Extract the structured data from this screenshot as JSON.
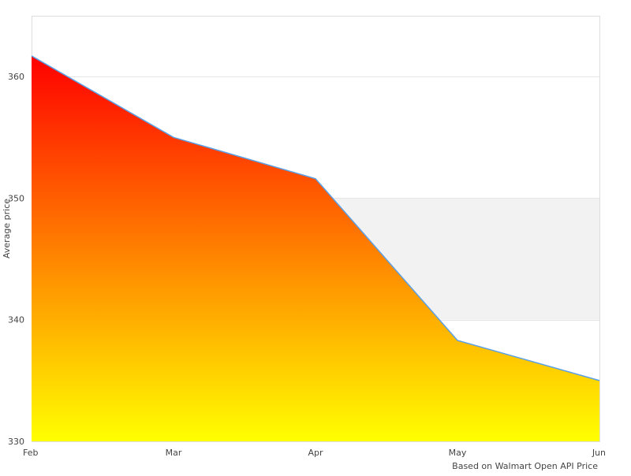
{
  "chart_data": {
    "type": "area",
    "title": "",
    "xlabel": "Based on Walmart Open API Price",
    "ylabel": "Average price",
    "categories": [
      "Feb",
      "Mar",
      "Apr",
      "May",
      "Jun"
    ],
    "values": [
      361.7,
      355.0,
      351.6,
      338.3,
      335.0
    ],
    "ylim": [
      330,
      365
    ],
    "yticks": [
      330,
      340,
      350,
      360
    ],
    "grid": true,
    "plot_band": [
      340,
      350
    ],
    "legend": "none",
    "colors": {
      "fill_top": "#ff0000",
      "fill_bottom": "#ffff00",
      "line": "#5aa0e6",
      "band": "#f2f2f2",
      "grid": "#e6e6e6"
    }
  }
}
